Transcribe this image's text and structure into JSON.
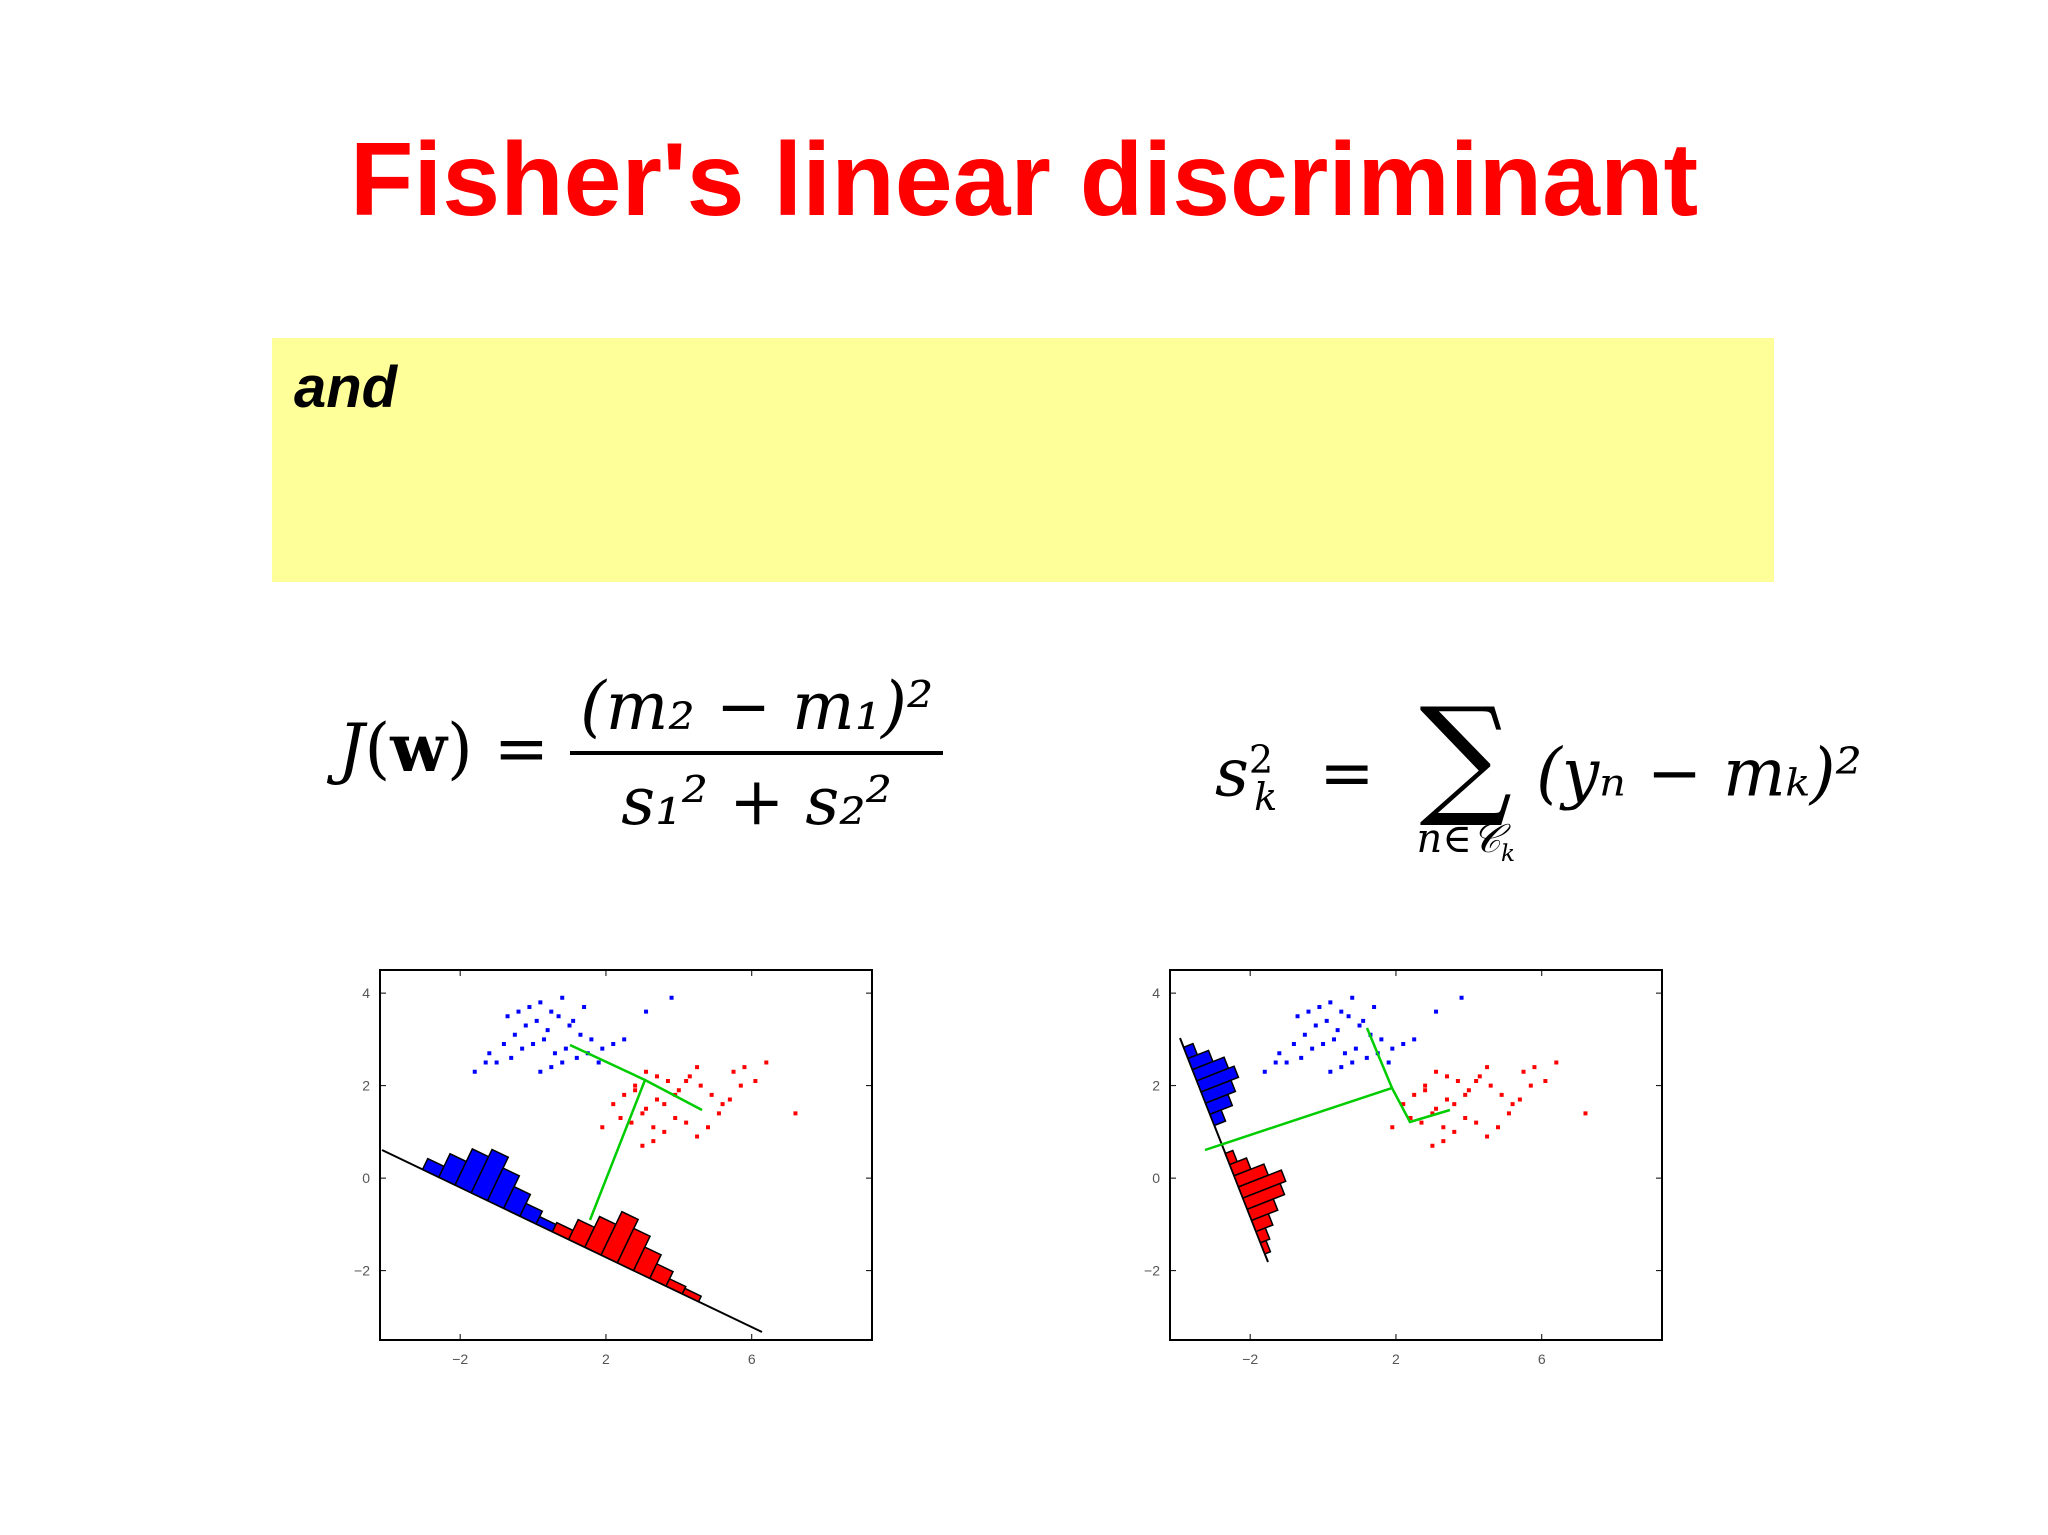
{
  "slide": {
    "title": "Fisher's linear discriminant",
    "callout_text": "and"
  },
  "equations": {
    "j_lhs_J": "J",
    "j_lhs_w": "w",
    "j_num": "(m₂ − m₁)²",
    "j_den": "s₁² + s₂²",
    "s_lhs": "s",
    "s_lhs_sup": "2",
    "s_lhs_sub": "k",
    "s_sigma": "∑",
    "s_under": "n∈𝒞",
    "s_under_sub": "k",
    "s_rhs": "(yₙ − mₖ)²"
  },
  "colors": {
    "title": "#ff0000",
    "callout_bg": "#ffff99",
    "class1": "#0000ff",
    "class2": "#ff0000",
    "projection_line": "#00cc00"
  },
  "chart_data": [
    {
      "type": "scatter",
      "title": "",
      "xlabel": "",
      "ylabel": "",
      "xlim": [
        -4.2,
        9.3
      ],
      "ylim": [
        -3.5,
        4.5
      ],
      "x_ticks": [
        "−2",
        "2",
        "6"
      ],
      "y_ticks": [
        "4",
        "2",
        "0",
        "−2"
      ],
      "grid": false,
      "series": [
        {
          "class": "blue",
          "color": "#0000ff",
          "x": [
            -1.2,
            -0.8,
            -0.5,
            -0.2,
            0.1,
            0.4,
            0.7,
            1.0,
            1.3,
            1.6,
            1.9,
            2.2,
            2.5,
            -1.0,
            -0.6,
            -0.3,
            0.0,
            0.3,
            0.6,
            0.9,
            1.2,
            1.5,
            1.8,
            -0.7,
            -0.4,
            -0.1,
            0.2,
            0.5,
            0.8,
            1.1,
            1.4,
            0.2,
            0.5,
            0.8,
            3.1,
            3.8,
            -1.6,
            -1.3
          ],
          "y": [
            2.7,
            2.9,
            3.1,
            3.3,
            3.4,
            3.2,
            3.5,
            3.3,
            3.1,
            3.0,
            2.8,
            2.9,
            3.0,
            2.5,
            2.6,
            2.8,
            2.9,
            3.0,
            2.7,
            2.8,
            2.6,
            2.7,
            2.5,
            3.5,
            3.6,
            3.7,
            3.8,
            3.6,
            3.9,
            3.4,
            3.7,
            2.3,
            2.4,
            2.5,
            3.6,
            3.9,
            2.3,
            2.5
          ]
        },
        {
          "class": "red",
          "color": "#ff0000",
          "x": [
            2.2,
            2.5,
            2.8,
            3.1,
            3.4,
            3.7,
            4.0,
            4.3,
            4.6,
            4.9,
            5.2,
            5.5,
            5.8,
            6.1,
            6.4,
            2.4,
            2.7,
            3.0,
            3.3,
            3.6,
            3.9,
            4.2,
            4.5,
            4.8,
            5.1,
            5.4,
            5.7,
            3.0,
            3.3,
            3.6,
            3.9,
            4.2,
            4.5,
            2.8,
            3.1,
            3.4,
            7.2,
            1.9
          ],
          "y": [
            1.6,
            1.8,
            2.0,
            1.5,
            1.7,
            2.1,
            1.9,
            2.2,
            2.0,
            1.8,
            1.6,
            2.3,
            2.4,
            2.1,
            2.5,
            1.3,
            1.2,
            1.4,
            1.1,
            1.0,
            1.3,
            1.2,
            0.9,
            1.1,
            1.4,
            1.7,
            2.0,
            0.7,
            0.8,
            1.6,
            1.8,
            2.1,
            2.4,
            1.9,
            2.3,
            2.2,
            1.4,
            1.1
          ]
        }
      ],
      "annotations": [
        "projection line with class histograms",
        "green line joining class means"
      ]
    },
    {
      "type": "scatter",
      "title": "",
      "xlabel": "",
      "ylabel": "",
      "xlim": [
        -4.2,
        9.3
      ],
      "ylim": [
        -3.5,
        4.5
      ],
      "x_ticks": [
        "−2",
        "2",
        "6"
      ],
      "y_ticks": [
        "4",
        "2",
        "0",
        "−2"
      ],
      "grid": false,
      "series": [
        {
          "class": "blue",
          "color": "#0000ff",
          "x": [
            -1.2,
            -0.8,
            -0.5,
            -0.2,
            0.1,
            0.4,
            0.7,
            1.0,
            1.3,
            1.6,
            1.9,
            2.2,
            2.5,
            -1.0,
            -0.6,
            -0.3,
            0.0,
            0.3,
            0.6,
            0.9,
            1.2,
            1.5,
            1.8,
            -0.7,
            -0.4,
            -0.1,
            0.2,
            0.5,
            0.8,
            1.1,
            1.4,
            0.2,
            0.5,
            0.8,
            3.1,
            3.8,
            -1.6,
            -1.3
          ],
          "y": [
            2.7,
            2.9,
            3.1,
            3.3,
            3.4,
            3.2,
            3.5,
            3.3,
            3.1,
            3.0,
            2.8,
            2.9,
            3.0,
            2.5,
            2.6,
            2.8,
            2.9,
            3.0,
            2.7,
            2.8,
            2.6,
            2.7,
            2.5,
            3.5,
            3.6,
            3.7,
            3.8,
            3.6,
            3.9,
            3.4,
            3.7,
            2.3,
            2.4,
            2.5,
            3.6,
            3.9,
            2.3,
            2.5
          ]
        },
        {
          "class": "red",
          "color": "#ff0000",
          "x": [
            2.2,
            2.5,
            2.8,
            3.1,
            3.4,
            3.7,
            4.0,
            4.3,
            4.6,
            4.9,
            5.2,
            5.5,
            5.8,
            6.1,
            6.4,
            2.4,
            2.7,
            3.0,
            3.3,
            3.6,
            3.9,
            4.2,
            4.5,
            4.8,
            5.1,
            5.4,
            5.7,
            3.0,
            3.3,
            3.6,
            3.9,
            4.2,
            4.5,
            2.8,
            3.1,
            3.4,
            7.2,
            1.9
          ],
          "y": [
            1.6,
            1.8,
            2.0,
            1.5,
            1.7,
            2.1,
            1.9,
            2.2,
            2.0,
            1.8,
            1.6,
            2.3,
            2.4,
            2.1,
            2.5,
            1.3,
            1.2,
            1.4,
            1.1,
            1.0,
            1.3,
            1.2,
            0.9,
            1.1,
            1.4,
            1.7,
            2.0,
            0.7,
            0.8,
            1.6,
            1.8,
            2.1,
            2.4,
            1.9,
            2.3,
            2.2,
            1.4,
            1.1
          ]
        }
      ],
      "annotations": [
        "Fisher projection with separated class histograms",
        "green line joining class means"
      ]
    }
  ]
}
